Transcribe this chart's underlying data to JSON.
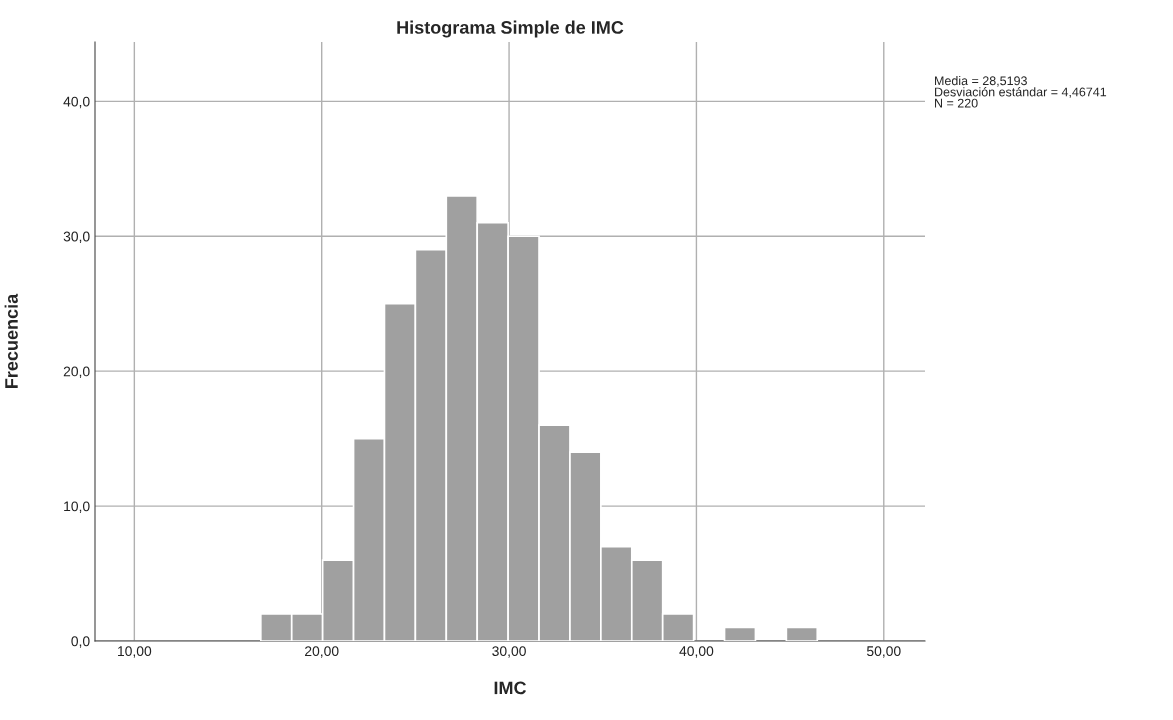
{
  "chart_data": {
    "type": "histogram",
    "title": "Histograma Simple de IMC",
    "xlabel": "IMC",
    "ylabel": "Frecuencia",
    "bins": [
      16.75,
      18.4,
      20.05,
      21.7,
      23.35,
      25.0,
      26.65,
      28.3,
      29.95,
      31.6,
      33.25,
      34.9,
      36.55,
      38.2,
      39.85,
      41.5,
      43.15,
      44.8,
      46.45
    ],
    "values": [
      2,
      2,
      6,
      15,
      25,
      29,
      33,
      31,
      30,
      16,
      14,
      7,
      6,
      2,
      0,
      1,
      0,
      1
    ],
    "color": "#a0a0a0",
    "xlim": [
      7.9,
      52.2
    ],
    "ylim": [
      0,
      44.4
    ],
    "xticks": [
      {
        "value": 10,
        "label": "10,00"
      },
      {
        "value": 20,
        "label": "20,00"
      },
      {
        "value": 30,
        "label": "30,00"
      },
      {
        "value": 40,
        "label": "40,00"
      },
      {
        "value": 50,
        "label": "50,00"
      }
    ],
    "yticks": [
      {
        "value": 0,
        "label": "0,0"
      },
      {
        "value": 10,
        "label": "10,0"
      },
      {
        "value": 20,
        "label": "20,0"
      },
      {
        "value": 30,
        "label": "30,0"
      },
      {
        "value": 40,
        "label": "40,0"
      }
    ],
    "grid": true,
    "annotations": [
      "Media = 28,5193\nDesviación estándar = 4,46741\nN = 220"
    ]
  }
}
